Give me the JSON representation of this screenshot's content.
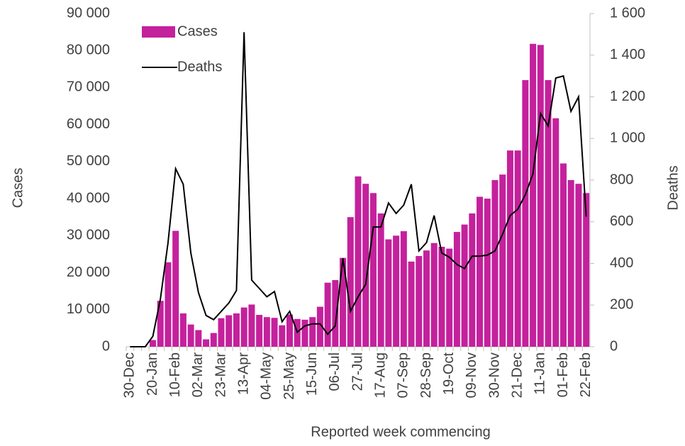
{
  "chart_data": {
    "type": "bar-line",
    "x_label": "Reported week commencing",
    "y_label": "Cases",
    "y2_label": "Deaths",
    "categories": [
      "30-Dec",
      null,
      null,
      "20-Jan",
      null,
      null,
      "10-Feb",
      null,
      null,
      "02-Mar",
      null,
      null,
      "23-Mar",
      null,
      null,
      "13-Apr",
      null,
      null,
      "04-May",
      null,
      null,
      "25-May",
      null,
      null,
      "15-Jun",
      null,
      null,
      "06-Jul",
      null,
      null,
      "27-Jul",
      null,
      null,
      "17-Aug",
      null,
      null,
      "07-Sep",
      null,
      null,
      "28-Sep",
      null,
      null,
      "19-Oct",
      null,
      null,
      "09-Nov",
      null,
      null,
      "30-Nov",
      null,
      null,
      "21-Dec",
      null,
      null,
      "11-Jan",
      null,
      null,
      "01-Feb",
      null,
      null,
      "22-Feb"
    ],
    "series": [
      {
        "name": "Cases",
        "kind": "bar",
        "color": "#c4219c",
        "values": [
          0,
          0,
          0,
          1800,
          12400,
          22800,
          31300,
          9000,
          6000,
          4500,
          2000,
          3700,
          7700,
          8500,
          9000,
          10600,
          11400,
          8600,
          8000,
          7800,
          5800,
          8700,
          7500,
          7300,
          8000,
          10800,
          17300,
          18000,
          24000,
          35000,
          46000,
          44000,
          41500,
          36000,
          29000,
          30000,
          31200,
          23000,
          24500,
          26000,
          28000,
          27000,
          26500,
          31000,
          33000,
          36000,
          40500,
          40000,
          45000,
          46500,
          53000,
          53000,
          72000,
          81800,
          81500,
          72000,
          61700,
          49500,
          45000,
          44000,
          41500
        ]
      },
      {
        "name": "Deaths",
        "kind": "line",
        "axis": "y2",
        "color": "#000000",
        "values": [
          0,
          0,
          0,
          50,
          230,
          500,
          855,
          780,
          450,
          260,
          150,
          130,
          170,
          210,
          270,
          1510,
          320,
          280,
          240,
          265,
          120,
          170,
          70,
          100,
          110,
          110,
          60,
          100,
          425,
          170,
          240,
          300,
          575,
          575,
          690,
          640,
          680,
          780,
          460,
          500,
          630,
          450,
          430,
          395,
          375,
          435,
          435,
          440,
          460,
          540,
          630,
          660,
          730,
          830,
          1120,
          1060,
          1290,
          1300,
          1130,
          1200,
          625
        ]
      }
    ],
    "ylim": [
      0,
      90000
    ],
    "yticks": [
      0,
      {
        "value": 10000,
        "label": "10 000"
      },
      {
        "value": 20000,
        "label": "20 000"
      },
      {
        "value": 30000,
        "label": "30 000"
      },
      {
        "value": 40000,
        "label": "40 000"
      },
      {
        "value": 50000,
        "label": "50 000"
      },
      {
        "value": 60000,
        "label": "60 000"
      },
      {
        "value": 70000,
        "label": "70 000"
      },
      {
        "value": 80000,
        "label": "80 000"
      },
      {
        "value": 90000,
        "label": "90 000"
      }
    ],
    "y2lim": [
      0,
      1600
    ],
    "y2ticks": [
      0,
      200,
      400,
      600,
      800,
      {
        "value": 1000,
        "label": "1 000"
      },
      {
        "value": 1200,
        "label": "1 200"
      },
      {
        "value": 1400,
        "label": "1 400"
      },
      {
        "value": 1600,
        "label": "1 600"
      }
    ],
    "legend": "top-left"
  }
}
